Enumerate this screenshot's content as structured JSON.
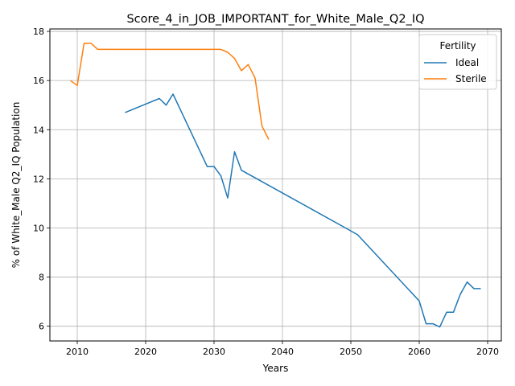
{
  "chart_data": {
    "type": "line",
    "title": "Score_4_in_JOB_IMPORTANT_for_White_Male_Q2_IQ",
    "xlabel": "Years",
    "ylabel": "% of White_Male Q2_IQ Population",
    "xlim": [
      2006.0,
      2072.0
    ],
    "ylim": [
      5.4,
      18.1
    ],
    "xticks": [
      2010,
      2020,
      2030,
      2040,
      2050,
      2060,
      2070
    ],
    "yticks": [
      6,
      8,
      10,
      12,
      14,
      16,
      18
    ],
    "grid": true,
    "legend": {
      "title": "Fertility",
      "position": "top-right"
    },
    "series": [
      {
        "name": "Ideal",
        "color": "#1f77b4",
        "x": [
          2017,
          2022,
          2023,
          2024,
          2029,
          2030,
          2031,
          2032,
          2033,
          2034,
          2050,
          2051,
          2060,
          2061,
          2062,
          2063,
          2064,
          2065,
          2066,
          2067,
          2068,
          2069
        ],
        "y": [
          14.7,
          15.27,
          15.0,
          15.45,
          12.5,
          12.5,
          12.12,
          11.22,
          13.1,
          12.35,
          9.88,
          9.72,
          7.03,
          6.1,
          6.1,
          5.97,
          6.57,
          6.57,
          7.3,
          7.8,
          7.53,
          7.53
        ]
      },
      {
        "name": "Sterile",
        "color": "#ff7f0e",
        "x": [
          2009,
          2010,
          2011,
          2012,
          2013,
          2029,
          2030,
          2031,
          2032,
          2033,
          2034,
          2035,
          2036,
          2037,
          2038
        ],
        "y": [
          16.0,
          15.8,
          17.52,
          17.52,
          17.27,
          17.27,
          17.27,
          17.27,
          17.15,
          16.9,
          16.4,
          16.65,
          16.1,
          14.15,
          13.6
        ]
      }
    ]
  }
}
